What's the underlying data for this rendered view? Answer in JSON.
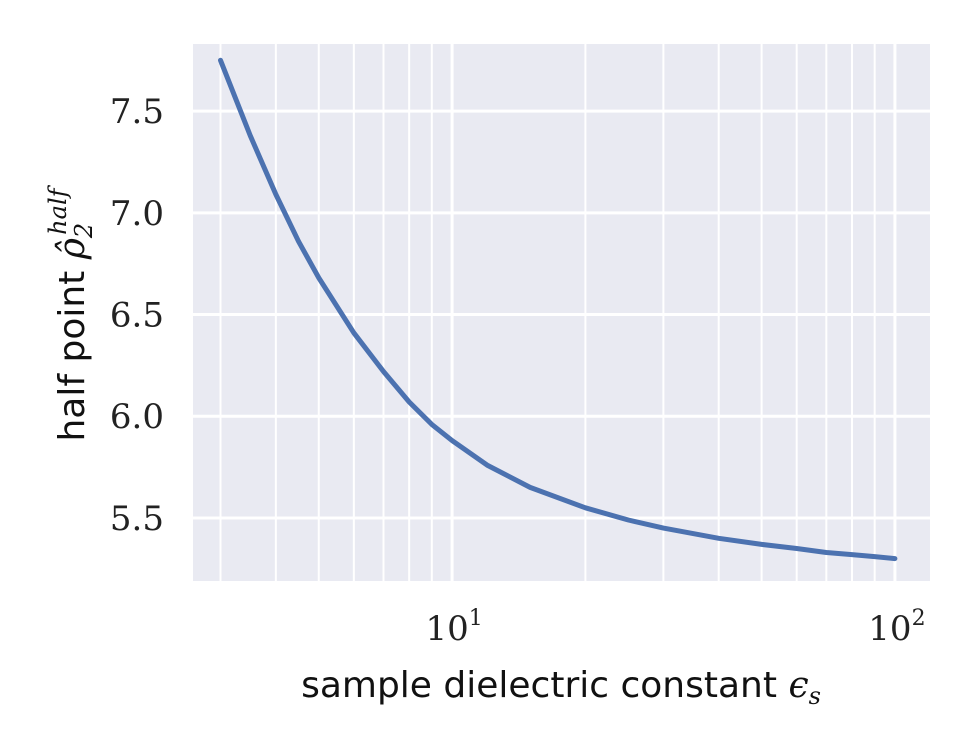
{
  "chart_data": {
    "type": "line",
    "xscale": "log",
    "yscale": "linear",
    "xlim": [
      2.6,
      120
    ],
    "ylim": [
      5.19,
      7.83
    ],
    "grid": true,
    "grid_color": "#ffffff",
    "plot_background": "#e9eaf2",
    "line_color": "#4c72b0",
    "xlabel_text": "sample dielectric constant ",
    "xlabel_symbol": "ϵ",
    "xlabel_sub": "s",
    "ylabel_text": "half point ",
    "ylabel_symbol": "ρ̂",
    "ylabel_sub": "2",
    "ylabel_sup": "half",
    "x_ticks": [
      {
        "value": 10,
        "base": "10",
        "exp": "1"
      },
      {
        "value": 100,
        "base": "10",
        "exp": "2"
      }
    ],
    "x_minor_ticks": [
      3,
      4,
      5,
      6,
      7,
      8,
      9,
      20,
      30,
      40,
      50,
      60,
      70,
      80,
      90
    ],
    "y_ticks": [
      {
        "value": 5.5,
        "label": "5.5"
      },
      {
        "value": 6.0,
        "label": "6.0"
      },
      {
        "value": 6.5,
        "label": "6.5"
      },
      {
        "value": 7.0,
        "label": "7.0"
      },
      {
        "value": 7.5,
        "label": "7.5"
      }
    ],
    "series": [
      {
        "x": [
          3,
          3.5,
          4,
          4.5,
          5,
          6,
          7,
          8,
          9,
          10,
          12,
          15,
          20,
          25,
          30,
          40,
          50,
          60,
          70,
          80,
          90,
          100
        ],
        "y": [
          7.75,
          7.38,
          7.09,
          6.86,
          6.68,
          6.41,
          6.22,
          6.07,
          5.96,
          5.88,
          5.76,
          5.65,
          5.55,
          5.49,
          5.45,
          5.4,
          5.37,
          5.35,
          5.33,
          5.32,
          5.31,
          5.3
        ]
      }
    ]
  }
}
